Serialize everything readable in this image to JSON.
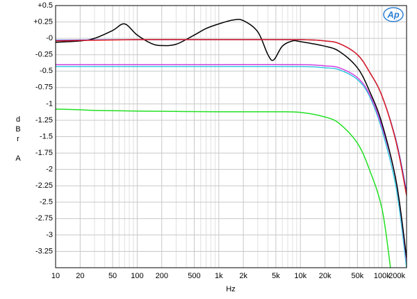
{
  "chart_data": {
    "type": "line",
    "logo": "Ap",
    "xlabel": "Hz",
    "ylabel": [
      "d",
      "B",
      "r",
      "A"
    ],
    "xscale": "log",
    "grid": true,
    "xlim": [
      10,
      200000
    ],
    "ylim": [
      -3.5,
      0.5
    ],
    "xticks": [
      10,
      20,
      50,
      100,
      200,
      500,
      {
        "value": 1000,
        "label": "1k"
      },
      {
        "value": 2000,
        "label": "2k"
      },
      {
        "value": 5000,
        "label": "5k"
      },
      {
        "value": 10000,
        "label": "10k"
      },
      {
        "value": 20000,
        "label": "20k"
      },
      {
        "value": 50000,
        "label": "50k"
      },
      {
        "value": 100000,
        "label": "100k"
      },
      {
        "value": 200000,
        "label": "200k"
      }
    ],
    "xminorticks": [
      30,
      40,
      60,
      70,
      80,
      90,
      300,
      400,
      600,
      700,
      800,
      900,
      3000,
      4000,
      6000,
      7000,
      8000,
      9000,
      30000,
      40000,
      60000,
      70000,
      80000,
      90000,
      150000
    ],
    "yticks": [
      {
        "value": 0.5,
        "label": "+0.5"
      },
      {
        "value": 0.25,
        "label": "+0.25"
      },
      {
        "value": 0,
        "label": "-0"
      },
      -0.25,
      -0.5,
      -0.75,
      -1,
      -1.25,
      -1.5,
      -1.75,
      -2,
      -2.25,
      -2.5,
      -2.75,
      -3,
      -3.25
    ],
    "series": [
      {
        "name": "green",
        "color": "#22e022",
        "x": [
          10,
          20,
          30,
          100,
          1000,
          5000,
          10000,
          20000,
          30000,
          50000,
          70000,
          100000,
          127000
        ],
        "values": [
          -1.08,
          -1.09,
          -1.1,
          -1.11,
          -1.12,
          -1.12,
          -1.13,
          -1.2,
          -1.3,
          -1.6,
          -2.0,
          -2.6,
          -3.5
        ]
      },
      {
        "name": "cyan",
        "color": "#33c8e0",
        "x": [
          10,
          100,
          1000,
          10000,
          20000,
          30000,
          50000,
          70000,
          100000,
          150000,
          200000
        ],
        "values": [
          -0.43,
          -0.43,
          -0.43,
          -0.43,
          -0.45,
          -0.48,
          -0.63,
          -0.88,
          -1.4,
          -2.3,
          -3.5
        ]
      },
      {
        "name": "magenta",
        "color": "#d040e0",
        "x": [
          10,
          100,
          1000,
          10000,
          20000,
          30000,
          50000,
          70000,
          100000,
          150000,
          200000
        ],
        "values": [
          -0.4,
          -0.4,
          -0.4,
          -0.4,
          -0.42,
          -0.45,
          -0.6,
          -0.85,
          -1.35,
          -2.2,
          -3.4
        ]
      },
      {
        "name": "black",
        "color": "#000000",
        "x": [
          10,
          20,
          30,
          50,
          70,
          100,
          150,
          200,
          300,
          500,
          700,
          1000,
          1500,
          2000,
          3000,
          4000,
          4700,
          6000,
          8000,
          10000,
          20000,
          30000,
          50000,
          70000,
          100000,
          150000,
          200000
        ],
        "values": [
          -0.06,
          -0.04,
          0.0,
          0.12,
          0.22,
          0.05,
          -0.08,
          -0.11,
          -0.09,
          0.05,
          0.15,
          0.22,
          0.28,
          0.27,
          0.1,
          -0.25,
          -0.33,
          -0.12,
          -0.04,
          -0.05,
          -0.12,
          -0.2,
          -0.45,
          -0.8,
          -1.3,
          -2.2,
          -3.35
        ]
      },
      {
        "name": "blue",
        "color": "#3030e0",
        "x": [
          10,
          100,
          1000,
          10000,
          20000,
          30000,
          50000,
          70000,
          100000,
          150000,
          200000
        ],
        "values": [
          -0.03,
          -0.02,
          -0.02,
          -0.02,
          -0.04,
          -0.08,
          -0.25,
          -0.51,
          -0.88,
          -1.58,
          -2.35
        ]
      },
      {
        "name": "red",
        "color": "#e02020",
        "x": [
          10,
          100,
          1000,
          10000,
          20000,
          30000,
          50000,
          70000,
          100000,
          150000,
          200000
        ],
        "values": [
          -0.04,
          -0.02,
          -0.02,
          -0.02,
          -0.04,
          -0.08,
          -0.25,
          -0.51,
          -0.88,
          -1.6,
          -2.4
        ]
      }
    ]
  }
}
